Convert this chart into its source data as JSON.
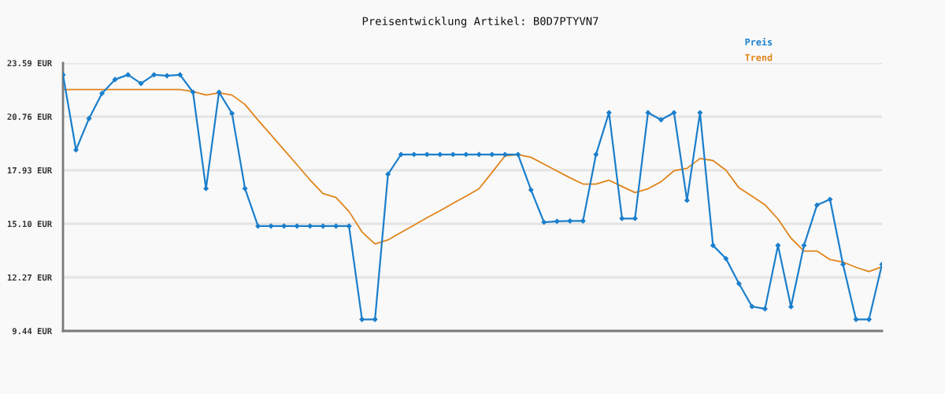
{
  "chart_data": {
    "type": "line",
    "title": "Preisentwicklung Artikel: B0D7PTYVN7",
    "categories": [
      null,
      null,
      null,
      null,
      null,
      null,
      null,
      null,
      null,
      null,
      null,
      null,
      null,
      null,
      null,
      null,
      null,
      null,
      null,
      null,
      null,
      null,
      null,
      null,
      null,
      null,
      null,
      null,
      null,
      null,
      null,
      null,
      null,
      null,
      null,
      null,
      null,
      null,
      null,
      null,
      null,
      null,
      null,
      null,
      null,
      null,
      null,
      null,
      null,
      null,
      null,
      null,
      null,
      null,
      null,
      null,
      null,
      null,
      null,
      null,
      null,
      null,
      null,
      null
    ],
    "series": [
      {
        "name": "Preis",
        "color": "#1b7fcc",
        "marker": "diamond",
        "values": [
          22.97,
          19.0,
          20.66,
          21.99,
          22.72,
          22.97,
          22.51,
          22.97,
          22.92,
          22.97,
          22.05,
          16.96,
          22.05,
          20.93,
          16.96,
          14.98,
          14.98,
          14.98,
          14.98,
          14.98,
          14.98,
          14.98,
          14.98,
          10.05,
          10.05,
          17.72,
          18.76,
          18.76,
          18.76,
          18.76,
          18.76,
          18.76,
          18.76,
          18.76,
          18.76,
          18.76,
          16.89,
          15.18,
          15.23,
          15.25,
          15.25,
          18.76,
          20.97,
          15.38,
          15.38,
          20.97,
          20.59,
          20.97,
          16.34,
          20.97,
          13.96,
          13.26,
          11.94,
          10.73,
          10.61,
          13.96,
          10.72,
          13.96,
          16.09,
          16.39,
          12.96,
          10.05,
          10.05,
          12.96
        ]
      },
      {
        "name": "Trend",
        "color": "#e0841a",
        "marker": "none",
        "values": [
          22.19,
          22.19,
          22.19,
          22.19,
          22.19,
          22.19,
          22.19,
          22.19,
          22.19,
          22.19,
          22.09,
          21.9,
          22.01,
          21.9,
          21.4,
          20.58,
          19.8,
          19.01,
          18.22,
          17.42,
          16.7,
          16.49,
          15.75,
          14.67,
          14.03,
          14.25,
          14.64,
          15.03,
          15.42,
          15.79,
          16.18,
          16.56,
          16.95,
          17.81,
          18.69,
          18.76,
          18.61,
          18.25,
          17.89,
          17.53,
          17.2,
          17.2,
          17.4,
          17.07,
          16.75,
          16.95,
          17.32,
          17.9,
          18.03,
          18.55,
          18.44,
          17.93,
          17.0,
          16.56,
          16.1,
          15.35,
          14.34,
          13.66,
          13.66,
          13.21,
          13.08,
          12.8,
          12.58,
          12.83
        ]
      }
    ],
    "ylim": [
      9.44,
      23.59
    ],
    "yticks": [
      {
        "value": 9.44,
        "label": "9.44 EUR"
      },
      {
        "value": 12.27,
        "label": "12.27 EUR"
      },
      {
        "value": 15.1,
        "label": "15.10 EUR"
      },
      {
        "value": 17.93,
        "label": "17.93 EUR"
      },
      {
        "value": 20.76,
        "label": "20.76 EUR"
      },
      {
        "value": 23.59,
        "label": "23.59 EUR"
      }
    ],
    "grid": "y",
    "legend": "top right",
    "tick_labels": "y"
  }
}
